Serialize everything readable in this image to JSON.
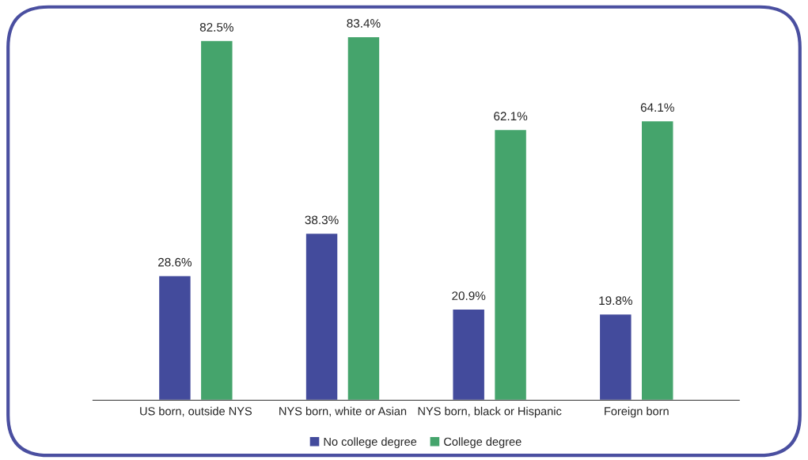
{
  "chart_data": {
    "type": "bar",
    "categories": [
      "US born, outside NYS",
      "NYS born, white or Asian",
      "NYS born, black or Hispanic",
      "Foreign born"
    ],
    "series": [
      {
        "name": "No college degree",
        "color": "#434b9c",
        "values": [
          28.6,
          38.3,
          20.9,
          19.8
        ],
        "value_labels": [
          "28.6%",
          "38.3%",
          "20.9%",
          "19.8%"
        ]
      },
      {
        "name": "College degree",
        "color": "#45a46c",
        "values": [
          82.5,
          83.4,
          62.1,
          64.1
        ],
        "value_labels": [
          "82.5%",
          "83.4%",
          "62.1%",
          "64.1%"
        ]
      }
    ],
    "legend": "bottom",
    "grid": false
  }
}
